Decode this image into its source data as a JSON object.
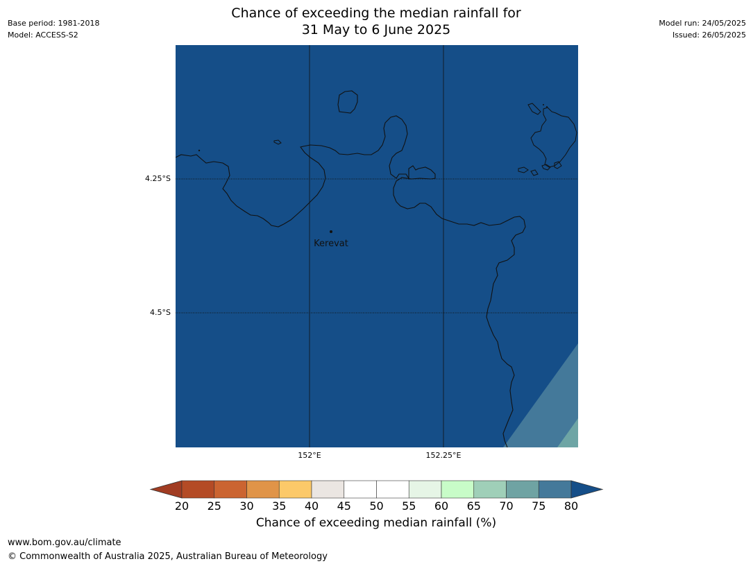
{
  "header": {
    "base_period": "Base period: 1981-2018",
    "model": "Model: ACCESS-S2",
    "model_run": "Model run: 24/05/2025",
    "issued": "Issued: 26/05/2025",
    "title_line1": "Chance of exceeding the median rainfall for",
    "title_line2": "31 May to 6 June 2025"
  },
  "map": {
    "lat_labels": [
      "4.25°S",
      "4.5°S"
    ],
    "lon_labels": [
      "152°E",
      "152.25°E"
    ],
    "place_label": "Kerevat",
    "colors": {
      "base_fill": "#154e88",
      "band_70_75": "#44799a",
      "band_65_70": "#6ea5a5",
      "coastline": "#111111"
    }
  },
  "colorbar": {
    "ticks": [
      "20",
      "25",
      "30",
      "35",
      "40",
      "45",
      "50",
      "55",
      "60",
      "65",
      "70",
      "75",
      "80"
    ],
    "colors": [
      "#a13c22",
      "#b44b25",
      "#cb6431",
      "#e09448",
      "#fcc969",
      "#ebe6e2",
      "#ffffff",
      "#ffffff",
      "#e6f5e6",
      "#c8fcc8",
      "#9fcfb8",
      "#6fa3a3",
      "#44799a",
      "#154e88"
    ],
    "label": "Chance of exceeding median rainfall (%)"
  },
  "footer": {
    "url": "www.bom.gov.au/climate",
    "copyright": "© Commonwealth of Australia 2025, Australian Bureau of Meteorology"
  }
}
